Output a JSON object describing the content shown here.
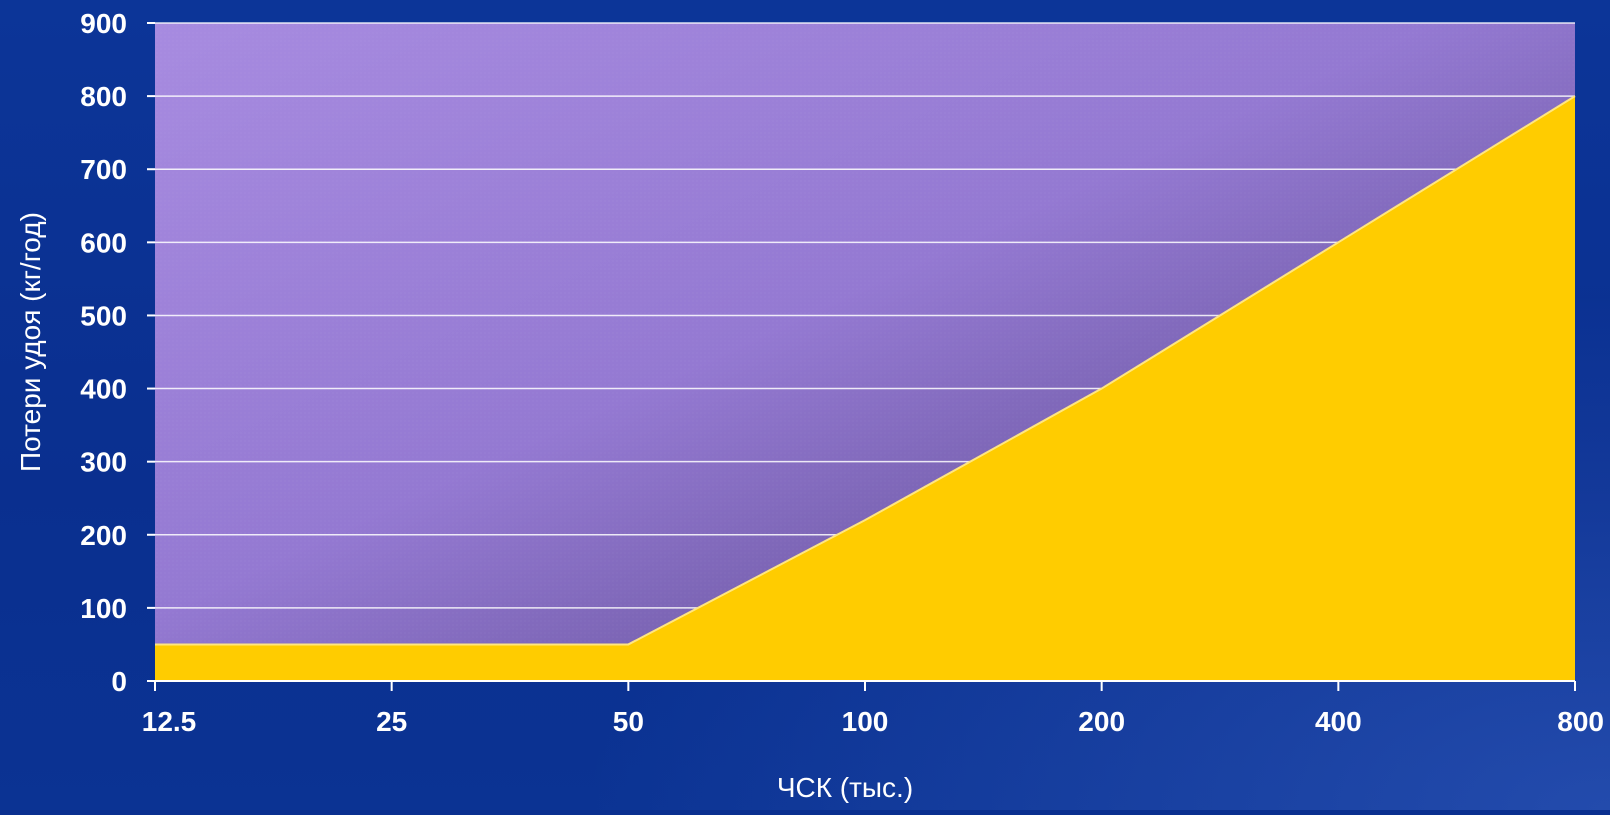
{
  "chart_data": {
    "type": "area",
    "title": "",
    "xlabel": "ЧСК (тыс.)",
    "ylabel": "Потери удоя (кг/год)",
    "x_scale": "log2",
    "categories": [
      "12.5",
      "25",
      "50",
      "100",
      "200",
      "400",
      "800"
    ],
    "series": [
      {
        "points": [
          {
            "x": 12.5,
            "y": 50
          },
          {
            "x": 50,
            "y": 50
          },
          {
            "x": 100,
            "y": 220
          },
          {
            "x": 200,
            "y": 400
          },
          {
            "x": 400,
            "y": 600
          },
          {
            "x": 800,
            "y": 800
          }
        ]
      }
    ],
    "ylim": [
      0,
      900
    ],
    "yticks": [
      "0",
      "100",
      "200",
      "300",
      "400",
      "500",
      "600",
      "700",
      "800",
      "900"
    ],
    "grid": true,
    "legend": "none",
    "colors": {
      "area_fill": "#ffcc00",
      "plot_bg_light": "#a78be0",
      "plot_bg_dark": "#5a4a8a",
      "gridline": "#ffffff",
      "background": "#0a2f8f",
      "text": "#ffffff"
    }
  }
}
